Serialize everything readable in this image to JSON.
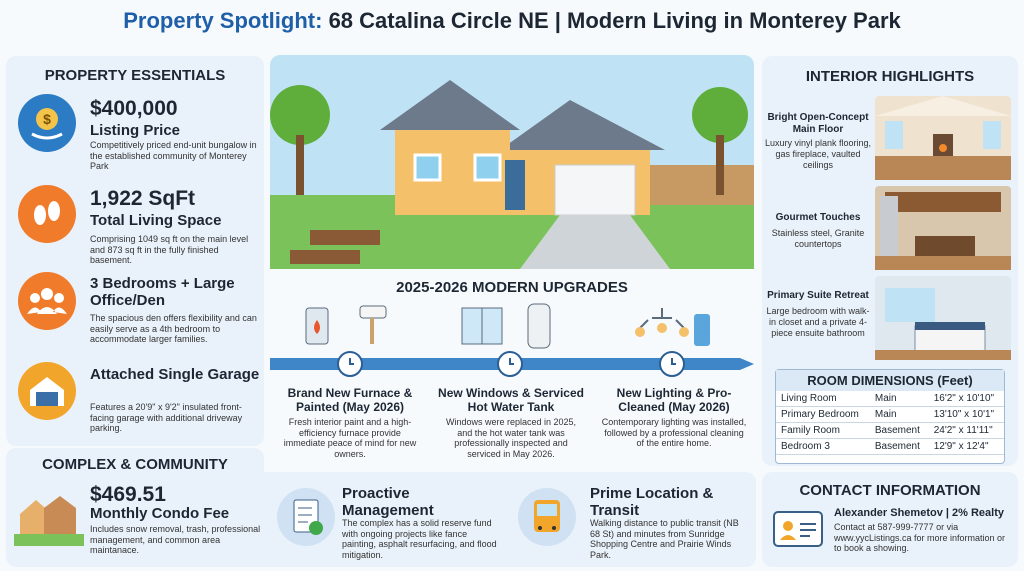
{
  "title": {
    "lead": "Property Spotlight:",
    "rest": "68 Catalina Circle NE | Modern Living in Monterey Park"
  },
  "essentials": {
    "heading": "PROPERTY ESSENTIALS",
    "items": [
      {
        "value": "$400,000",
        "label": "Listing Price",
        "text": "Competitively priced end-unit bungalow in the established community of Monterey Park"
      },
      {
        "value": "1,922 SqFt",
        "label": "Total Living Space",
        "text": "Comprising 1049 sq ft on the main level and 873 sq ft in the fully finished basement."
      },
      {
        "label": "3 Bedrooms + Large Office/Den",
        "text": "The spacious den offers flexibility and can easily serve as a 4th bedroom to accommodate larger families."
      },
      {
        "label": "Attached Single Garage",
        "text": "Features a 20'9\" x 9'2\" insulated front-facing garage with additional driveway parking."
      }
    ]
  },
  "upgrades": {
    "heading": "2025-2026 MODERN UPGRADES",
    "items": [
      {
        "title": "Brand New Furnace & Painted (May 2026)",
        "text": "Fresh interior paint and a high-efficiency furnace provide immediate peace of mind for new owners."
      },
      {
        "title": "New Windows & Serviced Hot Water Tank",
        "text": "Windows were replaced in 2025, and the hot water tank was professionally inspected and serviced in May 2026."
      },
      {
        "title": "New Lighting & Pro-Cleaned (May 2026)",
        "text": "Contemporary lighting was installed, followed by a professional cleaning of the entire home."
      }
    ]
  },
  "interior": {
    "heading": "INTERIOR HIGHLIGHTS",
    "items": [
      {
        "title": "Bright Open-Concept Main Floor",
        "text": "Luxury vinyl plank flooring, gas fireplace, vaulted ceilings"
      },
      {
        "title": "Gourmet Touches",
        "text": "Stainless steel, Granite countertops"
      },
      {
        "title": "Primary Suite Retreat",
        "text": "Large bedroom with walk-in closet and a private 4-piece ensuite bathroom"
      }
    ]
  },
  "rooms": {
    "heading": "ROOM DIMENSIONS (Feet)",
    "rows": [
      [
        "Living Room",
        "Main",
        "16'2\" x 10'10\""
      ],
      [
        "Primary Bedroom",
        "Main",
        "13'10\" x 10'1\""
      ],
      [
        "Family Room",
        "Basement",
        "24'2\" x 11'11\""
      ],
      [
        "Bedroom 3",
        "Basement",
        "12'9\" x 12'4\""
      ]
    ]
  },
  "community": {
    "heading": "COMPLEX & COMMUNITY",
    "items": [
      {
        "value": "$469.51",
        "label": "Monthly Condo Fee",
        "text": "Includes snow removal, trash, professional management, and common area maintanace."
      },
      {
        "label": "Proactive Management",
        "text": "The complex has a solid reserve fund with ongoing projects like fance painting, asphalt resurfacing, and flood mitigation."
      },
      {
        "label": "Prime Location & Transit",
        "text": "Walking distance to public transit (NB 68 St) and minutes from Sunridge Shopping Centre and Prairie Winds Park."
      }
    ]
  },
  "contact": {
    "heading": "CONTACT INFORMATION",
    "name": "Alexander Shemetov | 2% Realty",
    "text": "Contact at 587-999-7777 or via www.yycListings.ca for more information or to book a showing."
  }
}
